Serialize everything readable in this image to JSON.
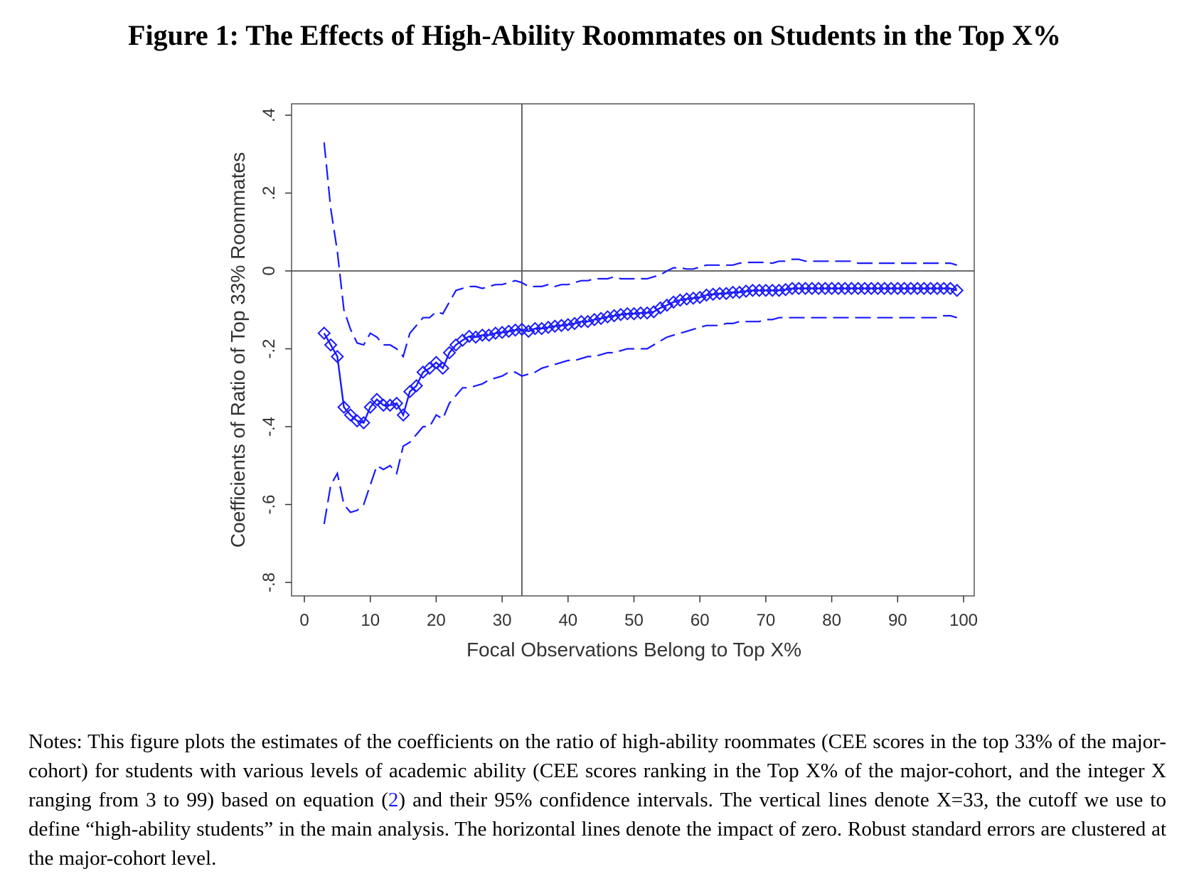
{
  "figure": {
    "title": "Figure 1: The Effects of High-Ability Roommates on Students in the Top X%",
    "notes": {
      "part1": "Notes: This figure plots the estimates of the coefficients on the ratio of high-ability roommates (CEE scores in the top 33% of the major-cohort) for students with various levels of academic ability (CEE scores ranking in the Top X% of the major-cohort, and the integer X ranging from 3 to 99) based on equation (",
      "ref": "2",
      "part2": ") and their 95% confidence intervals. The vertical lines denote X=33, the cutoff we use to define “high-ability students” in the main analysis. The horizontal lines denote the impact of zero. Robust standard errors are clustered at the major-cohort level."
    }
  },
  "chart_data": {
    "type": "line",
    "xlabel": "Focal Observations Belong to Top X%",
    "ylabel": "Coefficients of Ratio of Top 33% Roommates",
    "xlim": [
      0,
      100
    ],
    "ylim": [
      -0.8,
      0.4
    ],
    "xticks": [
      0,
      10,
      20,
      30,
      40,
      50,
      60,
      70,
      80,
      90,
      100
    ],
    "xtick_labels": [
      "0",
      "10",
      "20",
      "30",
      "40",
      "50",
      "60",
      "70",
      "80",
      "90",
      "100"
    ],
    "yticks": [
      -0.8,
      -0.6,
      -0.4,
      -0.2,
      0,
      0.2,
      0.4
    ],
    "ytick_labels": [
      "-.8",
      "-.6",
      "-.4",
      "-.2",
      "0",
      ".2",
      ".4"
    ],
    "reference_lines": {
      "vertical_x": 33,
      "horizontal_y": 0
    },
    "grid": false,
    "legend": "none",
    "colors": {
      "series": "#1a1aff",
      "reference": "#555555",
      "frame": "#555555"
    },
    "x": [
      3,
      4,
      5,
      6,
      7,
      8,
      9,
      10,
      11,
      12,
      13,
      14,
      15,
      16,
      17,
      18,
      19,
      20,
      21,
      22,
      23,
      24,
      25,
      26,
      27,
      28,
      29,
      30,
      31,
      32,
      33,
      34,
      35,
      36,
      37,
      38,
      39,
      40,
      41,
      42,
      43,
      44,
      45,
      46,
      47,
      48,
      49,
      50,
      51,
      52,
      53,
      54,
      55,
      56,
      57,
      58,
      59,
      60,
      61,
      62,
      63,
      64,
      65,
      66,
      67,
      68,
      69,
      70,
      71,
      72,
      73,
      74,
      75,
      76,
      77,
      78,
      79,
      80,
      81,
      82,
      83,
      84,
      85,
      86,
      87,
      88,
      89,
      90,
      91,
      92,
      93,
      94,
      95,
      96,
      97,
      98,
      99
    ],
    "series": [
      {
        "name": "Coefficient",
        "style": "solid line with diamond markers",
        "values": [
          -0.16,
          -0.19,
          -0.22,
          -0.35,
          -0.37,
          -0.385,
          -0.39,
          -0.35,
          -0.33,
          -0.345,
          -0.345,
          -0.34,
          -0.37,
          -0.31,
          -0.295,
          -0.26,
          -0.25,
          -0.235,
          -0.25,
          -0.21,
          -0.19,
          -0.178,
          -0.168,
          -0.17,
          -0.165,
          -0.165,
          -0.16,
          -0.158,
          -0.155,
          -0.152,
          -0.15,
          -0.155,
          -0.148,
          -0.148,
          -0.145,
          -0.142,
          -0.14,
          -0.138,
          -0.135,
          -0.13,
          -0.13,
          -0.125,
          -0.122,
          -0.118,
          -0.115,
          -0.112,
          -0.11,
          -0.11,
          -0.108,
          -0.108,
          -0.105,
          -0.095,
          -0.088,
          -0.08,
          -0.075,
          -0.072,
          -0.07,
          -0.068,
          -0.062,
          -0.06,
          -0.058,
          -0.058,
          -0.055,
          -0.055,
          -0.052,
          -0.05,
          -0.05,
          -0.05,
          -0.05,
          -0.05,
          -0.048,
          -0.045,
          -0.045,
          -0.045,
          -0.045,
          -0.045,
          -0.045,
          -0.045,
          -0.045,
          -0.045,
          -0.045,
          -0.045,
          -0.045,
          -0.045,
          -0.045,
          -0.045,
          -0.045,
          -0.045,
          -0.045,
          -0.045,
          -0.045,
          -0.045,
          -0.045,
          -0.045,
          -0.045,
          -0.045,
          -0.05
        ]
      },
      {
        "name": "Upper 95% CI",
        "style": "dashed line",
        "values": [
          0.33,
          0.16,
          0.05,
          -0.1,
          -0.15,
          -0.185,
          -0.19,
          -0.16,
          -0.17,
          -0.19,
          -0.19,
          -0.2,
          -0.22,
          -0.16,
          -0.14,
          -0.12,
          -0.12,
          -0.105,
          -0.11,
          -0.08,
          -0.05,
          -0.045,
          -0.04,
          -0.04,
          -0.045,
          -0.04,
          -0.035,
          -0.035,
          -0.03,
          -0.025,
          -0.03,
          -0.04,
          -0.04,
          -0.04,
          -0.035,
          -0.04,
          -0.035,
          -0.035,
          -0.03,
          -0.025,
          -0.025,
          -0.02,
          -0.02,
          -0.02,
          -0.015,
          -0.02,
          -0.02,
          -0.02,
          -0.02,
          -0.02,
          -0.015,
          -0.01,
          0.0,
          0.008,
          0.008,
          0.005,
          0.005,
          0.01,
          0.015,
          0.015,
          0.015,
          0.015,
          0.015,
          0.02,
          0.022,
          0.022,
          0.022,
          0.022,
          0.02,
          0.025,
          0.025,
          0.03,
          0.03,
          0.025,
          0.025,
          0.025,
          0.025,
          0.025,
          0.025,
          0.025,
          0.025,
          0.02,
          0.02,
          0.02,
          0.02,
          0.02,
          0.02,
          0.02,
          0.02,
          0.02,
          0.02,
          0.02,
          0.02,
          0.02,
          0.02,
          0.02,
          0.015
        ]
      },
      {
        "name": "Lower 95% CI",
        "style": "dashed line",
        "values": [
          -0.65,
          -0.55,
          -0.52,
          -0.6,
          -0.62,
          -0.615,
          -0.6,
          -0.55,
          -0.5,
          -0.51,
          -0.5,
          -0.52,
          -0.45,
          -0.44,
          -0.42,
          -0.4,
          -0.4,
          -0.37,
          -0.38,
          -0.34,
          -0.32,
          -0.3,
          -0.3,
          -0.295,
          -0.29,
          -0.28,
          -0.275,
          -0.27,
          -0.26,
          -0.26,
          -0.27,
          -0.265,
          -0.26,
          -0.25,
          -0.245,
          -0.24,
          -0.235,
          -0.23,
          -0.23,
          -0.225,
          -0.22,
          -0.22,
          -0.215,
          -0.21,
          -0.21,
          -0.205,
          -0.2,
          -0.2,
          -0.2,
          -0.2,
          -0.19,
          -0.18,
          -0.17,
          -0.165,
          -0.16,
          -0.155,
          -0.15,
          -0.145,
          -0.14,
          -0.14,
          -0.14,
          -0.135,
          -0.135,
          -0.13,
          -0.13,
          -0.13,
          -0.13,
          -0.125,
          -0.125,
          -0.12,
          -0.12,
          -0.12,
          -0.12,
          -0.12,
          -0.12,
          -0.12,
          -0.12,
          -0.12,
          -0.12,
          -0.12,
          -0.12,
          -0.12,
          -0.12,
          -0.12,
          -0.12,
          -0.12,
          -0.12,
          -0.12,
          -0.12,
          -0.12,
          -0.12,
          -0.12,
          -0.12,
          -0.12,
          -0.115,
          -0.115,
          -0.12
        ]
      }
    ]
  }
}
